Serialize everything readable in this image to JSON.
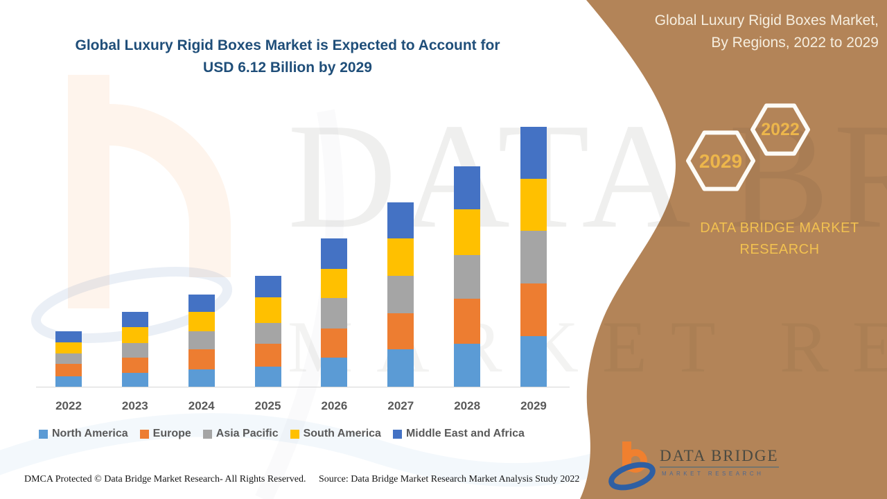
{
  "page": {
    "main_title_line1": "Global Luxury Rigid Boxes Market is Expected to Account for",
    "main_title_line2": "USD 6.12 Billion by 2029"
  },
  "sidebar": {
    "title_line1": "Global Luxury Rigid Boxes Market,",
    "title_line2": "By Regions, 2022 to 2029",
    "hexagons": [
      {
        "label": "2029"
      },
      {
        "label": "2022"
      }
    ],
    "brand_line1": "DATA BRIDGE MARKET",
    "brand_line2": "RESEARCH",
    "colors": {
      "background": "#B38458",
      "accent_gold": "#EDB64B",
      "text_cream": "#F6EEDF"
    }
  },
  "logo": {
    "name_text": "DATA BRIDGE",
    "sub_text": "MARKET RESEARCH"
  },
  "watermark": {
    "line1": "DATA BRIDGE",
    "line2": "MARKET RESEARCH"
  },
  "footer": {
    "left_text": "DMCA Protected © Data Bridge Market Research- All Rights Reserved.",
    "right_text": "Source: Data Bridge Market Research Market Analysis Study 2022"
  },
  "chart_data": {
    "type": "bar",
    "stacked": true,
    "title": "Global Luxury Rigid Boxes Market is Expected to Account for USD 6.12 Billion by 2029",
    "xlabel": "",
    "ylabel": "",
    "unit": "USD billion (values estimated from bar heights; 2029 total anchored to USD 6.12 billion)",
    "categories": [
      "2022",
      "2023",
      "2024",
      "2025",
      "2026",
      "2027",
      "2028",
      "2029"
    ],
    "series": [
      {
        "name": "North America",
        "color": "#5B9BD5",
        "values": [
          0.25,
          0.33,
          0.41,
          0.48,
          0.68,
          0.89,
          1.01,
          1.2
        ]
      },
      {
        "name": "Europe",
        "color": "#ED7D31",
        "values": [
          0.29,
          0.36,
          0.47,
          0.54,
          0.7,
          0.85,
          1.07,
          1.23
        ]
      },
      {
        "name": "Asia Pacific",
        "color": "#A5A5A5",
        "values": [
          0.24,
          0.34,
          0.43,
          0.49,
          0.71,
          0.87,
          1.03,
          1.24
        ]
      },
      {
        "name": "South America",
        "color": "#FFC000",
        "values": [
          0.26,
          0.37,
          0.45,
          0.59,
          0.69,
          0.88,
          1.07,
          1.23
        ]
      },
      {
        "name": "Middle East and Africa",
        "color": "#4472C4",
        "values": [
          0.26,
          0.36,
          0.41,
          0.52,
          0.71,
          0.85,
          1.02,
          1.22
        ]
      }
    ],
    "totals": [
      1.3,
      1.76,
      2.17,
      2.62,
      3.49,
      4.34,
      5.2,
      6.12
    ],
    "annotations": {
      "total_2029_billion_usd": 6.12
    },
    "legend_position": "bottom",
    "gridlines": false,
    "y_axis_visible": false
  }
}
